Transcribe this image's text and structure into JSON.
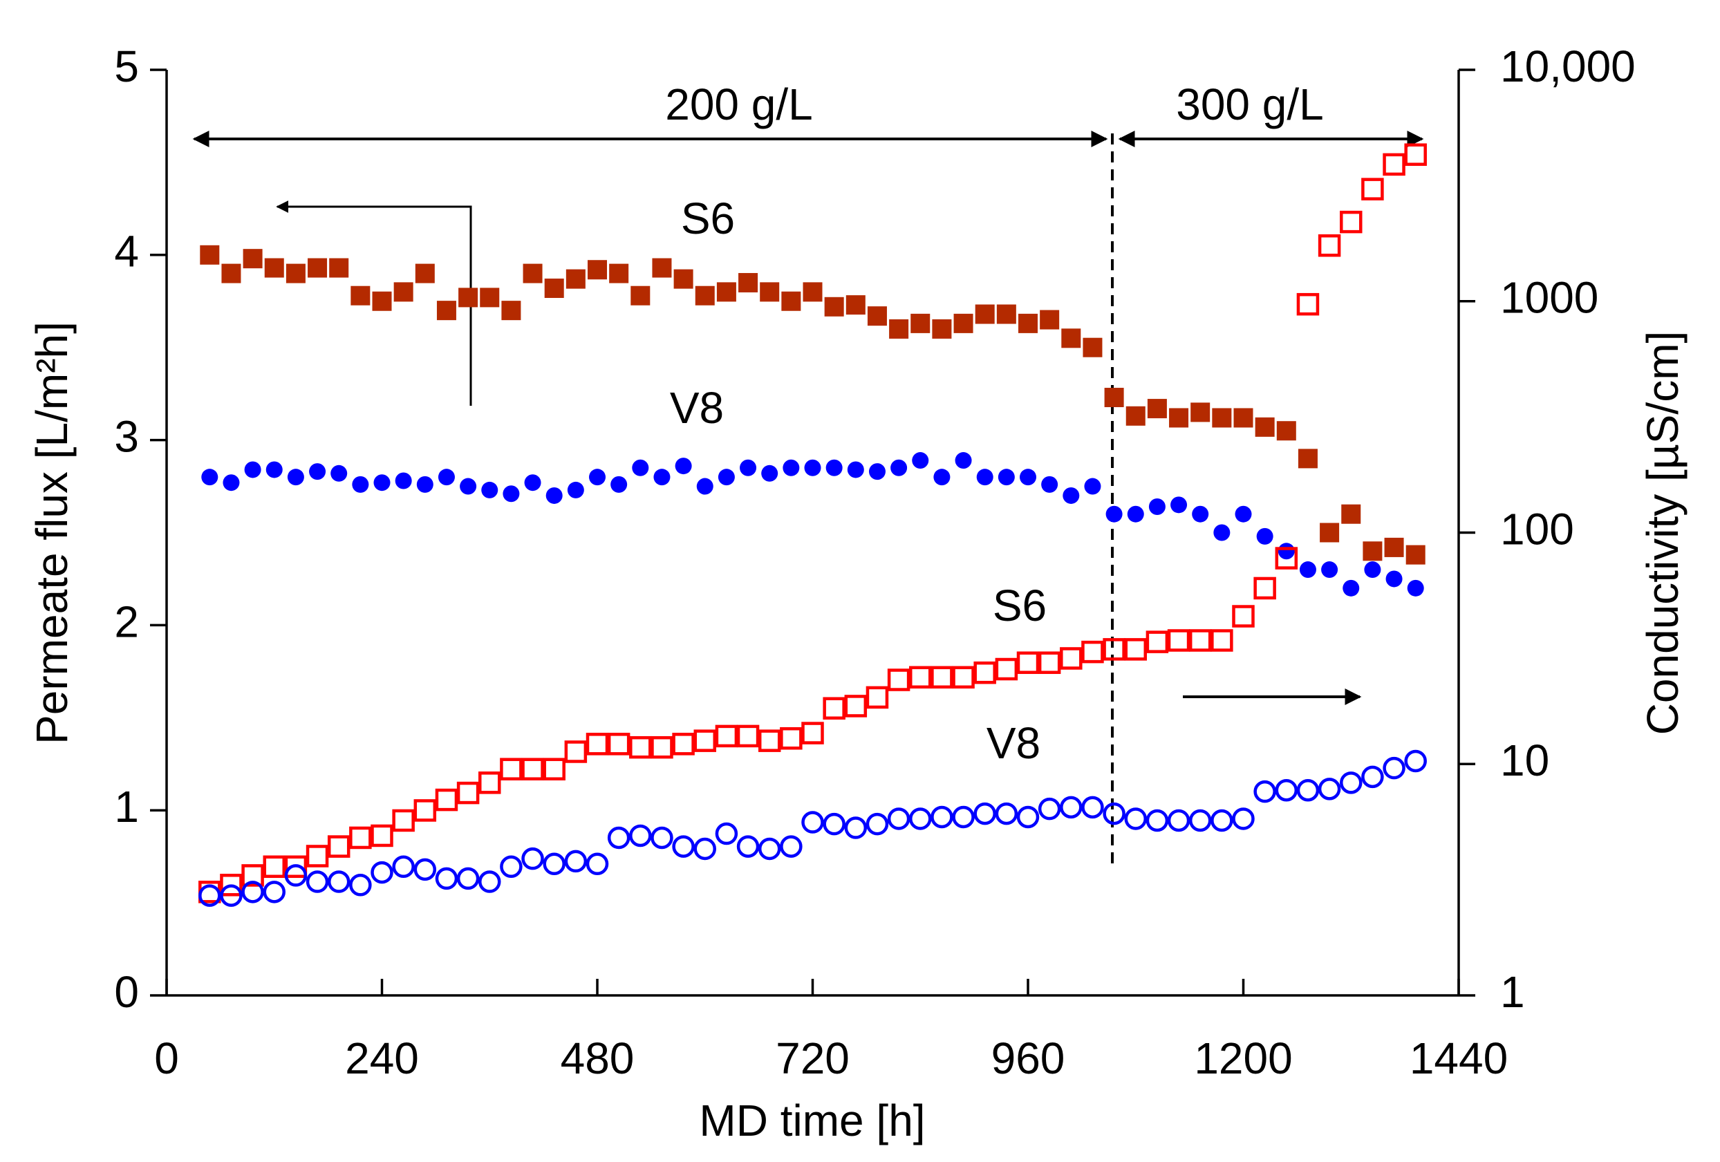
{
  "chart_data": {
    "type": "scatter",
    "x_label": "MD time [h]",
    "y_label": "Permeate flux [L/m²h]",
    "y2_label": "Conductivity [µS/cm]",
    "annotations": [
      "200 g/L",
      "300 g/L",
      "S6",
      "V8",
      "S6",
      "V8"
    ],
    "x": [
      48,
      72,
      96,
      120,
      144,
      168,
      192,
      216,
      240,
      264,
      288,
      312,
      336,
      360,
      384,
      408,
      432,
      456,
      480,
      504,
      528,
      552,
      576,
      600,
      624,
      648,
      672,
      696,
      720,
      744,
      768,
      792,
      816,
      840,
      864,
      888,
      912,
      936,
      960,
      984,
      1008,
      1032,
      1056,
      1080,
      1104,
      1128,
      1152,
      1176,
      1200,
      1224,
      1248,
      1272,
      1296,
      1320,
      1344,
      1368,
      1392
    ],
    "xlim": [
      0,
      1440
    ],
    "xticks": [
      0,
      240,
      480,
      720,
      960,
      1200,
      1440
    ],
    "ylim": [
      0,
      5
    ],
    "yticks": [
      0,
      1,
      2,
      3,
      4,
      5
    ],
    "y2lim": [
      1,
      10000
    ],
    "y2ticks": [
      1,
      10,
      100,
      1000,
      {
        "value": 10000,
        "label": "10,000"
      }
    ],
    "y2_log": true,
    "series": [
      {
        "name": "S6",
        "color": "#b42a00",
        "marker": "square",
        "filled": true,
        "values": [
          4.0,
          3.9,
          3.98,
          3.93,
          3.9,
          3.93,
          3.93,
          3.78,
          3.75,
          3.8,
          3.9,
          3.7,
          3.77,
          3.77,
          3.7,
          3.9,
          3.82,
          3.87,
          3.92,
          3.9,
          3.78,
          3.93,
          3.87,
          3.78,
          3.8,
          3.85,
          3.8,
          3.75,
          3.8,
          3.72,
          3.73,
          3.67,
          3.6,
          3.63,
          3.6,
          3.63,
          3.68,
          3.68,
          3.63,
          3.65,
          3.55,
          3.5,
          3.23,
          3.13,
          3.17,
          3.12,
          3.15,
          3.12,
          3.12,
          3.07,
          3.05,
          2.9,
          2.5,
          2.6,
          2.4,
          2.42,
          2.38
        ]
      },
      {
        "name": "V8",
        "color": "#0000ff",
        "marker": "circle",
        "filled": true,
        "values": [
          2.8,
          2.77,
          2.84,
          2.84,
          2.8,
          2.83,
          2.82,
          2.76,
          2.77,
          2.78,
          2.76,
          2.8,
          2.75,
          2.73,
          2.71,
          2.77,
          2.7,
          2.73,
          2.8,
          2.76,
          2.85,
          2.8,
          2.86,
          2.75,
          2.8,
          2.85,
          2.82,
          2.85,
          2.85,
          2.85,
          2.84,
          2.83,
          2.85,
          2.89,
          2.8,
          2.89,
          2.8,
          2.8,
          2.8,
          2.76,
          2.7,
          2.75,
          2.6,
          2.6,
          2.64,
          2.65,
          2.6,
          2.5,
          2.6,
          2.48,
          2.4,
          2.3,
          2.3,
          2.2,
          2.3,
          2.25,
          2.2
        ]
      },
      {
        "name": "S6",
        "color": "#ff0000",
        "marker": "square",
        "filled": false,
        "axis": "y2",
        "values": [
          2.8,
          3.0,
          3.3,
          3.6,
          3.6,
          4.0,
          4.4,
          4.8,
          4.9,
          5.7,
          6.3,
          7.0,
          7.5,
          8.3,
          9.5,
          9.5,
          9.5,
          11.3,
          12.2,
          12.2,
          11.8,
          11.8,
          12.2,
          12.6,
          13.2,
          13.2,
          12.6,
          12.9,
          13.6,
          17.4,
          17.8,
          19.4,
          23.1,
          23.7,
          23.7,
          23.7,
          24.8,
          25.7,
          27.4,
          27.4,
          28.6,
          30.5,
          31.3,
          31.3,
          33.7,
          34.2,
          34.2,
          34.2,
          43.5,
          57.5,
          77.5,
          970,
          1740,
          2200,
          3050,
          3900,
          4300
        ]
      },
      {
        "name": "V8",
        "color": "#0000ff",
        "marker": "circle",
        "filled": false,
        "axis": "y2",
        "values": [
          2.7,
          2.7,
          2.8,
          2.8,
          3.3,
          3.1,
          3.1,
          3.0,
          3.4,
          3.6,
          3.5,
          3.2,
          3.2,
          3.1,
          3.6,
          3.9,
          3.7,
          3.8,
          3.7,
          4.8,
          4.9,
          4.8,
          4.4,
          4.3,
          5.0,
          4.4,
          4.3,
          4.4,
          5.6,
          5.5,
          5.3,
          5.5,
          5.8,
          5.8,
          5.9,
          5.9,
          6.1,
          6.1,
          5.9,
          6.4,
          6.5,
          6.5,
          6.1,
          5.8,
          5.7,
          5.7,
          5.7,
          5.7,
          5.8,
          7.6,
          7.7,
          7.7,
          7.8,
          8.3,
          8.8,
          9.6,
          10.3
        ]
      }
    ]
  }
}
